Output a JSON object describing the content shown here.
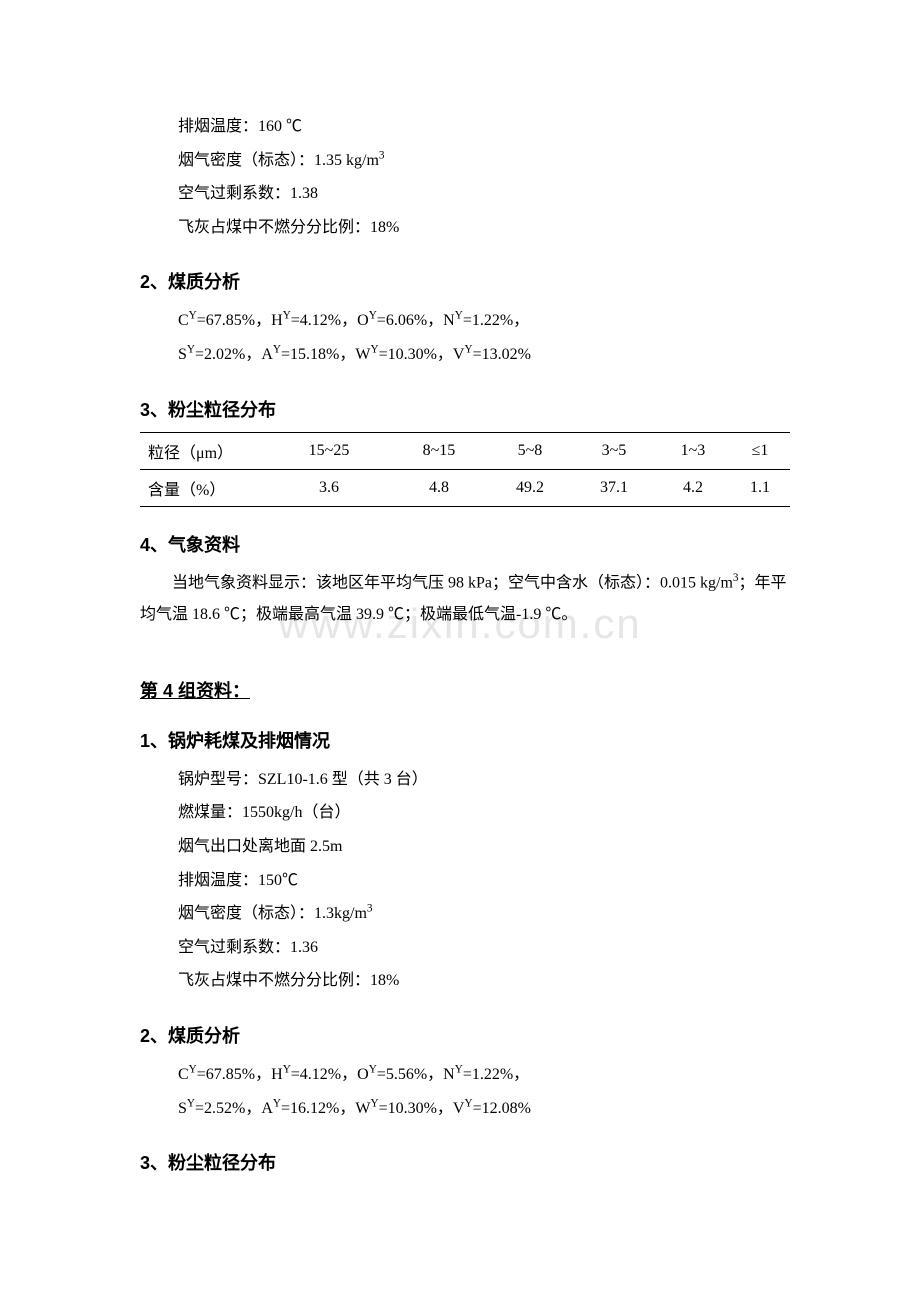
{
  "watermark": "www.zixin.com.cn",
  "top_block_lines": [
    "排烟温度：160 ℃",
    "烟气密度（标态）：1.35 kg/m",
    "空气过剩系数：1.38",
    "飞灰占煤中不燃分分比例：18%"
  ],
  "top_block_sup": "3",
  "sec2": {
    "title": "2、煤质分析",
    "line1_parts": [
      "C",
      "=67.85%，H",
      "=4.12%，O",
      "=6.06%，N",
      "=1.22%，"
    ],
    "line2_parts": [
      "S",
      "=2.02%，A",
      "=15.18%，W",
      "=10.30%，V",
      "=13.02%"
    ],
    "sup": "Y"
  },
  "sec3": {
    "title": "3、粉尘粒径分布",
    "header_label": "粒径（μm）",
    "row_label": "含量（%）",
    "cols": [
      "15~25",
      "8~15",
      "5~8",
      "3~5",
      "1~3",
      "≤1"
    ],
    "vals": [
      "3.6",
      "4.8",
      "49.2",
      "37.1",
      "4.2",
      "1.1"
    ]
  },
  "sec4": {
    "title": "4、气象资料",
    "para_before": "当地气象资料显示：该地区年平均气压 98 kPa；空气中含水（标态）：0.015 kg/m",
    "sup": "3",
    "para_after": "；年平均气温 18.6 ℃；极端最高气温 39.9 ℃；极端最低气温-1.9 ℃。"
  },
  "group4_title": "第 4 组资料：",
  "g4_sec1": {
    "title": "1、锅炉耗煤及排烟情况",
    "lines_before": [
      "锅炉型号：SZL10-1.6 型（共 3 台）",
      "燃煤量：1550kg/h（台）",
      "烟气出口处离地面 2.5m",
      "排烟温度：150℃"
    ],
    "density_before": "烟气密度（标态）：1.3kg/m",
    "density_sup": "3",
    "lines_after": [
      "空气过剩系数：1.36",
      "飞灰占煤中不燃分分比例：18%"
    ]
  },
  "g4_sec2": {
    "title": "2、煤质分析",
    "line1_parts": [
      "C",
      "=67.85%，H",
      "=4.12%，O",
      "=5.56%，N",
      "=1.22%，"
    ],
    "line2_parts": [
      "S",
      "=2.52%，A",
      "=16.12%，W",
      "=10.30%，V",
      "=12.08%"
    ],
    "sup": "Y"
  },
  "g4_sec3_title": "3、粉尘粒径分布"
}
